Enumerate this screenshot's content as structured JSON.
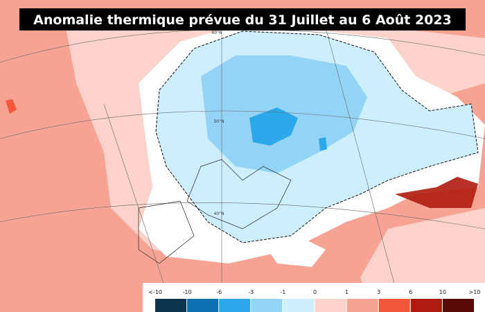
{
  "title": "Anomalie thermique prévue du 31 Juillet au 6 Août 2023",
  "map_labels": [
    "60°N",
    "50°N",
    "40°N"
  ],
  "legend": {
    "labels": [
      "<-10",
      "-10",
      "-6",
      "-3",
      "-1",
      "0",
      "1",
      "3",
      "6",
      "10",
      ">10"
    ],
    "colors": [
      "#0a3350",
      "#0b70b0",
      "#2ba8ea",
      "#93d3f6",
      "#cdeefc",
      "#fdd2ca",
      "#f6a394",
      "#f2573a",
      "#b01b0f",
      "#5b0b06"
    ]
  }
}
